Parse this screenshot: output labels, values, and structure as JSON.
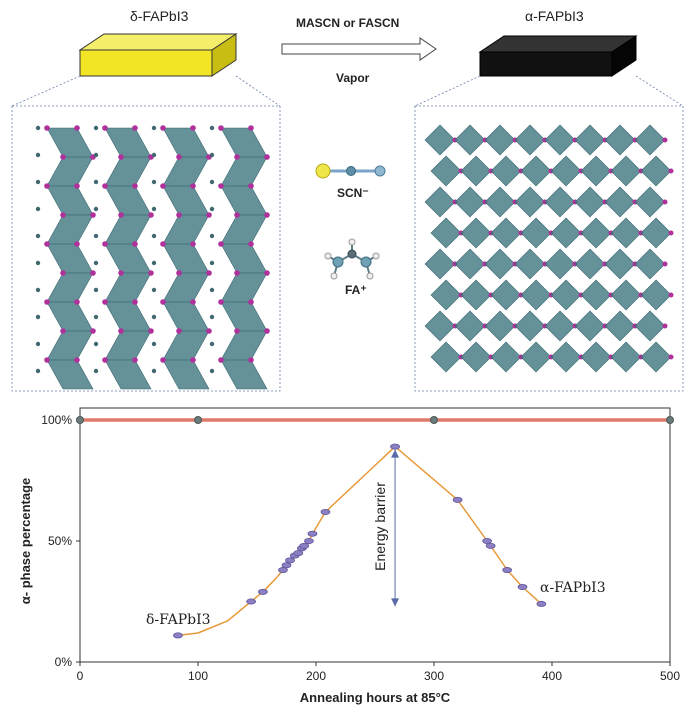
{
  "diagram": {
    "left_label": "δ-FAPbI3",
    "right_label": "α-FAPbI3",
    "arrow_top_label": "MASCN or FASCN",
    "arrow_bottom_label": "Vapor",
    "legend_scn": "SCN⁻",
    "legend_fa": "FA⁺",
    "colors": {
      "delta_block": "#f2e526",
      "alpha_block": "#111111",
      "octahedra": "#4a7e86",
      "iodide": "#b0309c"
    }
  },
  "chart_data": {
    "type": "scatter",
    "xlabel": "Annealing hours at 85°C",
    "ylabel": "α- phase percentage",
    "xlim": [
      0,
      500
    ],
    "ylim": [
      0,
      100
    ],
    "x_ticks": [
      "0",
      "100",
      "200",
      "300",
      "400",
      "500"
    ],
    "y_ticks": [
      "0%",
      "50%",
      "100%"
    ],
    "annotation_barrier": "Energy barrier",
    "annotation_delta": "δ-FAPbI3",
    "annotation_alpha": "α-FAPbI3",
    "series": [
      {
        "color": "#e07a6a",
        "style": "line-markers",
        "x": [
          0,
          100,
          300,
          500
        ],
        "y": [
          100,
          100,
          100,
          100
        ]
      },
      {
        "color": "#e89a3a",
        "style": "fit-curve",
        "x": [
          83,
          100,
          125,
          145,
          155,
          165,
          172,
          175,
          178,
          182,
          185,
          188,
          190,
          194,
          197,
          208,
          267,
          320,
          345,
          348,
          362,
          375,
          391
        ],
        "y": [
          11,
          12,
          17,
          25,
          29,
          34,
          38,
          40,
          42,
          44,
          45,
          47,
          48,
          50,
          53,
          62,
          89,
          67,
          50,
          48,
          38,
          31,
          24
        ]
      }
    ],
    "points": [
      {
        "x": 83,
        "y": 11
      },
      {
        "x": 145,
        "y": 25
      },
      {
        "x": 155,
        "y": 29
      },
      {
        "x": 172,
        "y": 38
      },
      {
        "x": 175,
        "y": 40
      },
      {
        "x": 178,
        "y": 42
      },
      {
        "x": 182,
        "y": 44
      },
      {
        "x": 185,
        "y": 45
      },
      {
        "x": 188,
        "y": 47
      },
      {
        "x": 190,
        "y": 48
      },
      {
        "x": 194,
        "y": 50
      },
      {
        "x": 197,
        "y": 53
      },
      {
        "x": 208,
        "y": 62
      },
      {
        "x": 267,
        "y": 89
      },
      {
        "x": 320,
        "y": 67
      },
      {
        "x": 345,
        "y": 50
      },
      {
        "x": 348,
        "y": 48
      },
      {
        "x": 362,
        "y": 38
      },
      {
        "x": 375,
        "y": 31
      },
      {
        "x": 391,
        "y": 24
      }
    ]
  }
}
